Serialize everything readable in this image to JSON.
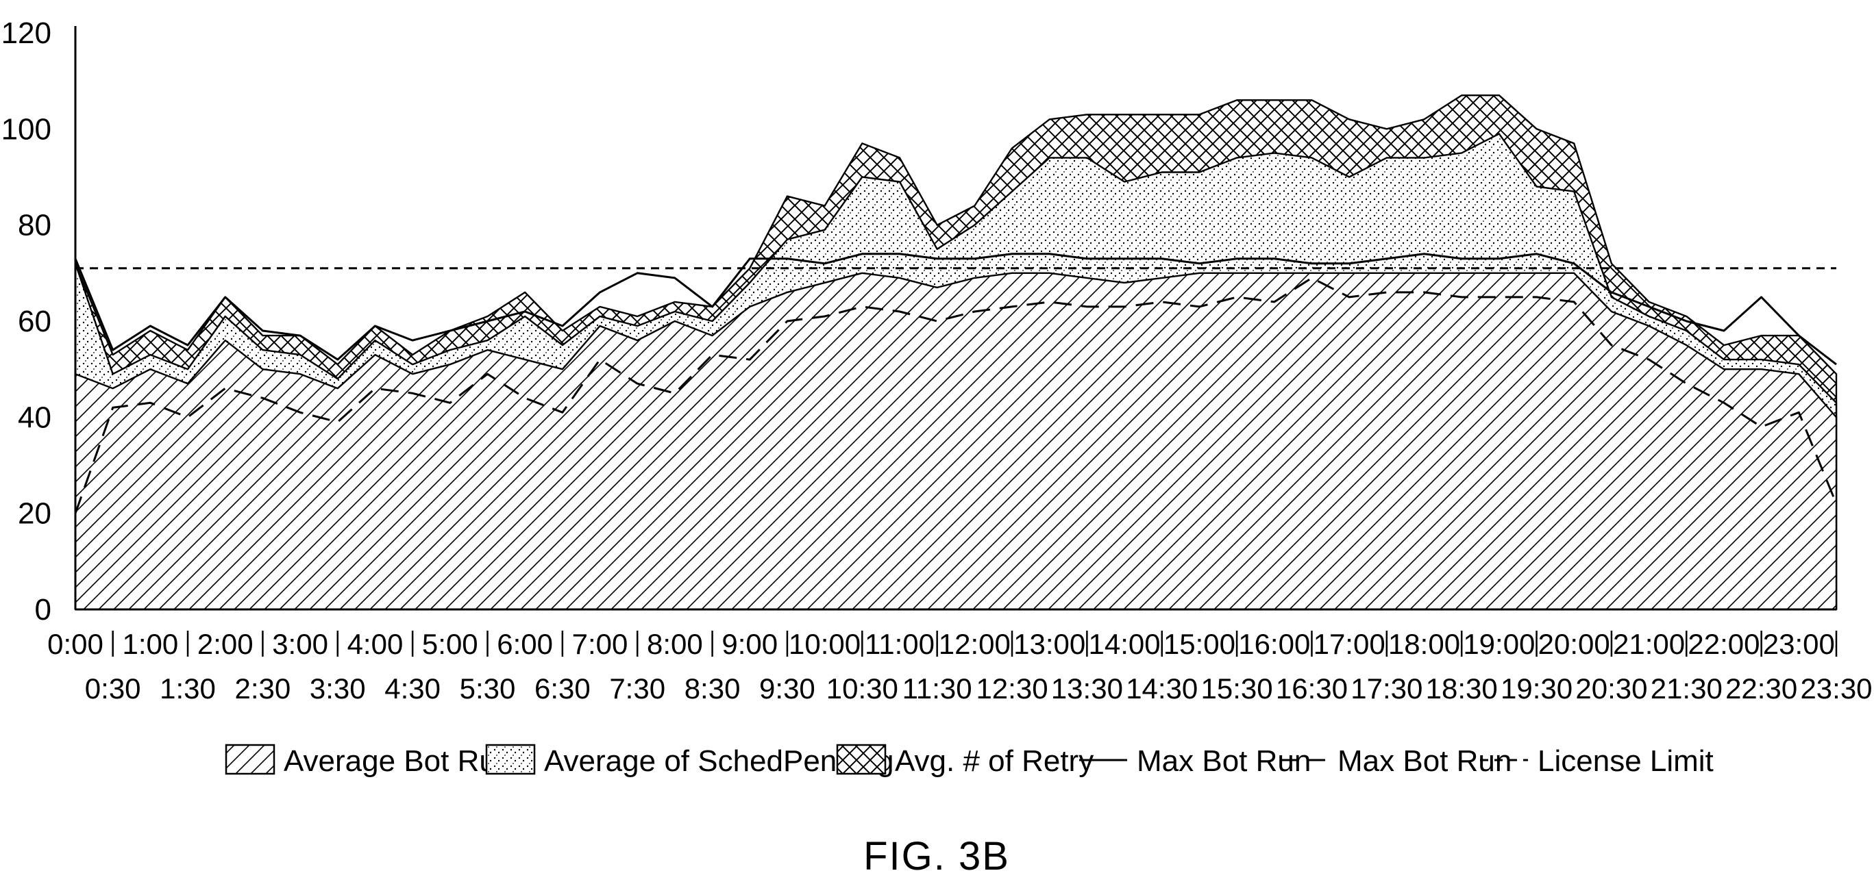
{
  "chart_data": {
    "type": "area",
    "title": "",
    "figure_label": "FIG. 3B",
    "xlabel": "",
    "ylabel": "",
    "ylim": [
      0,
      120
    ],
    "yticks": [
      0,
      20,
      40,
      60,
      80,
      100,
      120
    ],
    "grid": false,
    "legend_position": "bottom",
    "x_labels_top": [
      "0:00",
      "1:00",
      "2:00",
      "3:00",
      "4:00",
      "5:00",
      "6:00",
      "7:00",
      "8:00",
      "9:00",
      "10:00",
      "11:00",
      "12:00",
      "13:00",
      "14:00",
      "15:00",
      "16:00",
      "17:00",
      "18:00",
      "19:00",
      "20:00",
      "21:00",
      "22:00",
      "23:00"
    ],
    "x_labels_bottom": [
      "0:30",
      "1:30",
      "2:30",
      "3:30",
      "4:30",
      "5:30",
      "6:30",
      "7:30",
      "8:30",
      "9:30",
      "10:30",
      "11:30",
      "12:30",
      "13:30",
      "14:30",
      "15:30",
      "16:30",
      "17:30",
      "18:30",
      "19:30",
      "20:30",
      "21:30",
      "22:30",
      "23:30"
    ],
    "x": [
      "0:00",
      "0:30",
      "1:00",
      "1:30",
      "2:00",
      "2:30",
      "3:00",
      "3:30",
      "4:00",
      "4:30",
      "5:00",
      "5:30",
      "6:00",
      "6:30",
      "7:00",
      "7:30",
      "8:00",
      "8:30",
      "9:00",
      "9:30",
      "10:00",
      "10:30",
      "11:00",
      "11:30",
      "12:00",
      "12:30",
      "13:00",
      "13:30",
      "14:00",
      "14:30",
      "15:00",
      "15:30",
      "16:00",
      "16:30",
      "17:00",
      "17:30",
      "18:00",
      "18:30",
      "19:00",
      "19:30",
      "20:00",
      "20:30",
      "21:00",
      "21:30",
      "22:00",
      "22:30",
      "23:00",
      "23:30"
    ],
    "series": [
      {
        "name": "Average Bot Run",
        "kind": "area",
        "pattern": "hatch",
        "values": [
          49,
          46,
          50,
          47,
          56,
          50,
          49,
          46,
          53,
          49,
          51,
          54,
          52,
          50,
          59,
          56,
          60,
          57,
          63,
          66,
          68,
          70,
          69,
          67,
          69,
          70,
          70,
          69,
          68,
          69,
          70,
          70,
          70,
          70,
          70,
          70,
          70,
          70,
          70,
          70,
          70,
          62,
          59,
          55,
          50,
          50,
          49,
          40
        ]
      },
      {
        "name": "Average of SchedPending",
        "kind": "area",
        "pattern": "dots",
        "values": [
          23,
          3,
          3,
          3,
          5,
          4,
          4,
          2,
          3,
          2,
          3,
          2,
          9,
          5,
          2,
          3,
          2,
          3,
          5,
          11,
          11,
          20,
          20,
          8,
          11,
          17,
          24,
          25,
          21,
          22,
          21,
          24,
          25,
          24,
          20,
          24,
          24,
          25,
          29,
          18,
          17,
          3,
          2,
          3,
          2,
          2,
          2,
          3
        ]
      },
      {
        "name": "Avg. # of Retry",
        "kind": "area",
        "pattern": "crosshatch",
        "values": [
          0,
          4,
          5,
          4,
          4,
          3,
          4,
          3,
          3,
          2,
          4,
          5,
          5,
          3,
          2,
          2,
          2,
          3,
          3,
          9,
          5,
          7,
          5,
          5,
          4,
          9,
          8,
          9,
          14,
          12,
          12,
          12,
          11,
          12,
          12,
          6,
          8,
          12,
          8,
          12,
          10,
          7,
          3,
          3,
          3,
          5,
          6,
          6
        ]
      },
      {
        "name": "Max Bot Run",
        "kind": "line",
        "dash": "solid",
        "values": [
          73,
          54,
          59,
          55,
          65,
          58,
          57,
          52,
          59,
          56,
          58,
          60,
          62,
          59,
          66,
          70,
          69,
          63,
          73,
          73,
          72,
          74,
          74,
          73,
          73,
          74,
          74,
          73,
          73,
          73,
          72,
          73,
          73,
          72,
          72,
          73,
          74,
          73,
          73,
          74,
          72,
          66,
          63,
          60,
          58,
          65,
          57,
          51
        ]
      },
      {
        "name": "Max Bot Run",
        "kind": "line",
        "dash": "long-dash",
        "values": [
          20,
          42,
          43,
          40,
          46,
          44,
          41,
          39,
          46,
          45,
          43,
          49,
          44,
          41,
          52,
          47,
          45,
          53,
          52,
          60,
          61,
          63,
          62,
          60,
          62,
          63,
          64,
          63,
          63,
          64,
          63,
          65,
          64,
          69,
          65,
          66,
          66,
          65,
          65,
          65,
          64,
          55,
          52,
          47,
          43,
          38,
          41,
          22
        ]
      },
      {
        "name": "License Limit",
        "kind": "line",
        "dash": "short-dash",
        "values": [
          71,
          71,
          71,
          71,
          71,
          71,
          71,
          71,
          71,
          71,
          71,
          71,
          71,
          71,
          71,
          71,
          71,
          71,
          71,
          71,
          71,
          71,
          71,
          71,
          71,
          71,
          71,
          71,
          71,
          71,
          71,
          71,
          71,
          71,
          71,
          71,
          71,
          71,
          71,
          71,
          71,
          71,
          71,
          71,
          71,
          71,
          71,
          71
        ]
      }
    ]
  }
}
